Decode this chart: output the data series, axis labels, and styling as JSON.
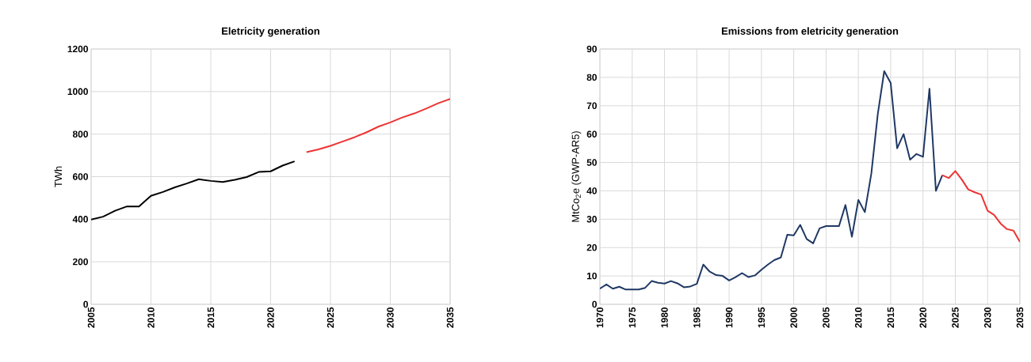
{
  "chart_data": [
    {
      "type": "line",
      "title": "Eletricity generation",
      "ylabel": "TWh",
      "xlim": [
        2005,
        2035
      ],
      "ylim": [
        0,
        1200
      ],
      "xticks": [
        2005,
        2010,
        2015,
        2020,
        2025,
        2030,
        2035
      ],
      "yticks": [
        0,
        200,
        400,
        600,
        800,
        1000,
        1200
      ],
      "grid": true,
      "series": [
        {
          "color": "#000000",
          "x": [
            2005,
            2006,
            2007,
            2008,
            2009,
            2010,
            2011,
            2012,
            2013,
            2014,
            2015,
            2016,
            2017,
            2018,
            2019,
            2020,
            2021,
            2022
          ],
          "values": [
            398,
            412,
            440,
            460,
            460,
            510,
            528,
            550,
            568,
            588,
            580,
            575,
            585,
            598,
            622,
            625,
            652,
            672
          ]
        },
        {
          "color": "#ee3333",
          "x": [
            2023,
            2024,
            2025,
            2026,
            2027,
            2028,
            2029,
            2030,
            2031,
            2032,
            2033,
            2034,
            2035
          ],
          "values": [
            715,
            728,
            745,
            765,
            785,
            808,
            835,
            855,
            878,
            897,
            920,
            945,
            965
          ]
        }
      ]
    },
    {
      "type": "line",
      "title": "Emissions from eletricity generation",
      "ylabel": "MtCo$_{2}$e (GWP-AR5)",
      "xlim": [
        1970,
        2035
      ],
      "ylim": [
        0,
        90
      ],
      "xticks": [
        1970,
        1975,
        1980,
        1985,
        1990,
        1995,
        2000,
        2005,
        2010,
        2015,
        2020,
        2025,
        2030,
        2035
      ],
      "yticks": [
        0,
        10,
        20,
        30,
        40,
        50,
        60,
        70,
        80,
        90
      ],
      "grid": true,
      "series": [
        {
          "color": "#1f3864",
          "x": [
            1970,
            1971,
            1972,
            1973,
            1974,
            1975,
            1976,
            1977,
            1978,
            1979,
            1980,
            1981,
            1982,
            1983,
            1984,
            1985,
            1986,
            1987,
            1988,
            1989,
            1990,
            1991,
            1992,
            1993,
            1994,
            1995,
            1996,
            1997,
            1998,
            1999,
            2000,
            2001,
            2002,
            2003,
            2004,
            2005,
            2006,
            2007,
            2008,
            2009,
            2010,
            2011,
            2012,
            2013,
            2014,
            2015,
            2016,
            2017,
            2018,
            2019,
            2020,
            2021,
            2022,
            2023
          ],
          "values": [
            5.5,
            7,
            5.5,
            6.2,
            5.2,
            5.2,
            5.2,
            5.8,
            8.2,
            7.6,
            7.3,
            8.2,
            7.4,
            6,
            6.3,
            7.2,
            14,
            11.5,
            10.3,
            10,
            8.4,
            9.6,
            11,
            9.6,
            10.2,
            12.2,
            14,
            15.6,
            16.5,
            24.5,
            24.3,
            28,
            23,
            21.5,
            26.8,
            27.6,
            27.6,
            27.6,
            35,
            23.8,
            36.8,
            32.5,
            46,
            67,
            82.2,
            78,
            55,
            60,
            51,
            53,
            52,
            76,
            40,
            45.5
          ]
        },
        {
          "color": "#ee3333",
          "x": [
            2023,
            2024,
            2025,
            2026,
            2027,
            2028,
            2029,
            2030,
            2031,
            2032,
            2033,
            2034,
            2035
          ],
          "values": [
            45.5,
            44.5,
            47,
            44,
            40.5,
            39.5,
            38.7,
            33,
            31.5,
            28.5,
            26.5,
            26,
            22
          ]
        }
      ]
    }
  ]
}
